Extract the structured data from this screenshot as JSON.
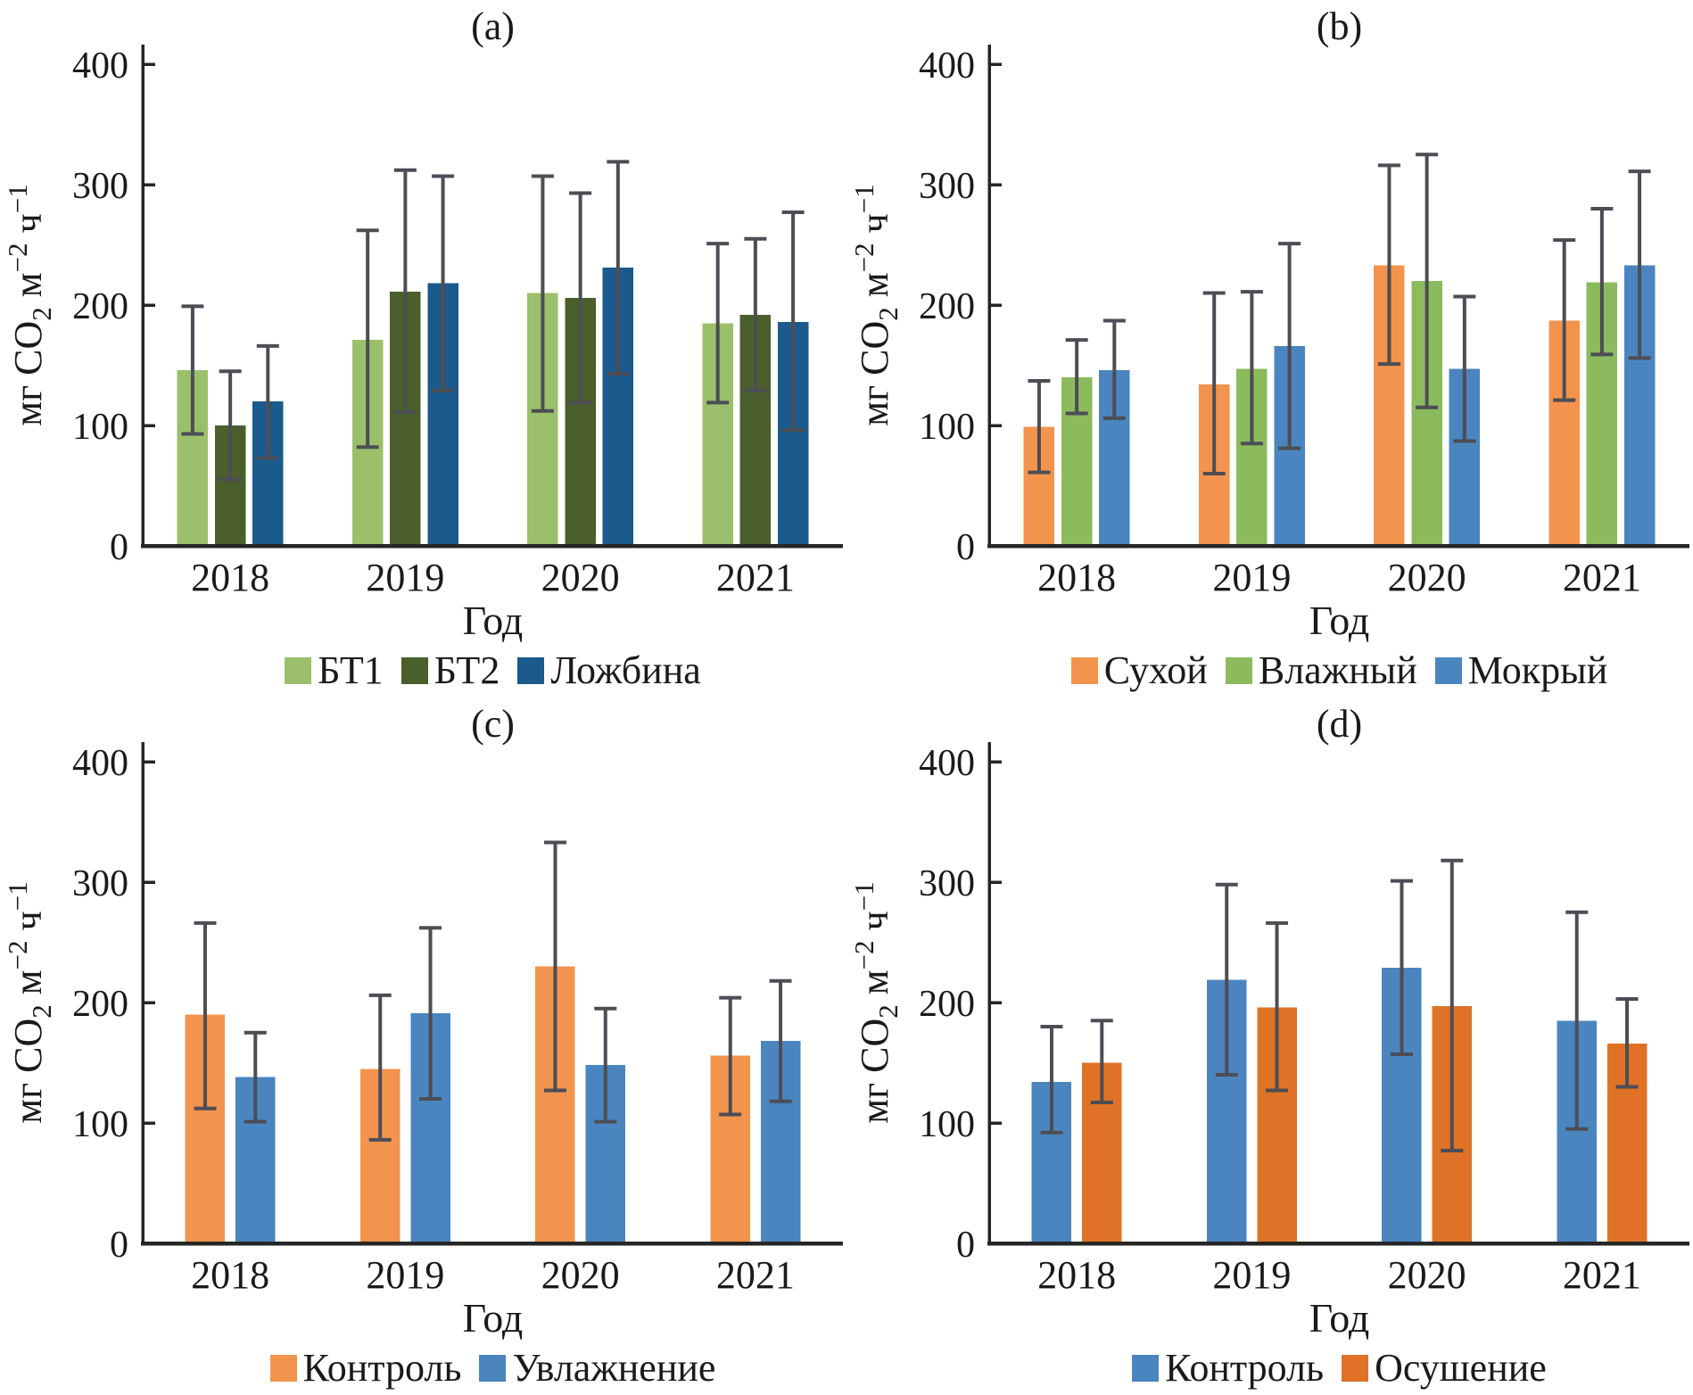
{
  "figure": {
    "background": "#ffffff",
    "axis_color": "#262626",
    "error_bar_color": "#4D4D55",
    "text_color": "#1a1a1a",
    "ylabel_plain": "мг CO2 м−2 ч−1",
    "ylabel_parts": [
      {
        "t": "мг CO",
        "s": ""
      },
      {
        "t": "2",
        "s": "sub"
      },
      {
        "t": " м",
        "s": ""
      },
      {
        "t": "−2",
        "s": "sup"
      },
      {
        "t": " ч",
        "s": ""
      },
      {
        "t": "−1",
        "s": "sup"
      }
    ]
  },
  "chart_data": [
    {
      "id": "a",
      "title": "(a)",
      "type": "bar",
      "xlabel": "Год",
      "categories": [
        "2018",
        "2019",
        "2020",
        "2021"
      ],
      "ylim": [
        0,
        400
      ],
      "yticks": [
        0,
        100,
        200,
        300,
        400
      ],
      "grid": false,
      "legend_position": "bottom",
      "error_bars": true,
      "series": [
        {
          "name": "БТ1",
          "color": "#9CBF6B",
          "values": [
            146,
            171,
            210,
            185
          ],
          "err_low": [
            93,
            82,
            112,
            119
          ],
          "err_high": [
            199,
            262,
            307,
            251
          ]
        },
        {
          "name": "БТ2",
          "color": "#4A5F2B",
          "values": [
            100,
            211,
            206,
            192
          ],
          "err_low": [
            55,
            111,
            119,
            129
          ],
          "err_high": [
            145,
            312,
            293,
            255
          ]
        },
        {
          "name": "Ложбина",
          "color": "#1A5A8C",
          "values": [
            120,
            218,
            231,
            186
          ],
          "err_low": [
            73,
            129,
            143,
            96
          ],
          "err_high": [
            166,
            307,
            319,
            277
          ]
        }
      ]
    },
    {
      "id": "b",
      "title": "(b)",
      "type": "bar",
      "xlabel": "Год",
      "categories": [
        "2018",
        "2019",
        "2020",
        "2021"
      ],
      "ylim": [
        0,
        400
      ],
      "yticks": [
        0,
        100,
        200,
        300,
        400
      ],
      "grid": false,
      "legend_position": "bottom",
      "error_bars": true,
      "series": [
        {
          "name": "Сухой",
          "color": "#F2944D",
          "values": [
            99,
            134,
            233,
            187
          ],
          "err_low": [
            61,
            60,
            151,
            121
          ],
          "err_high": [
            137,
            210,
            316,
            254
          ]
        },
        {
          "name": "Влажный",
          "color": "#8CBB5E",
          "values": [
            140,
            147,
            220,
            219
          ],
          "err_low": [
            110,
            85,
            115,
            159
          ],
          "err_high": [
            171,
            211,
            325,
            280
          ]
        },
        {
          "name": "Мокрый",
          "color": "#4A85BF",
          "values": [
            146,
            166,
            147,
            233
          ],
          "err_low": [
            106,
            81,
            87,
            156
          ],
          "err_high": [
            187,
            251,
            207,
            311
          ]
        }
      ]
    },
    {
      "id": "c",
      "title": "(c)",
      "type": "bar",
      "xlabel": "Год",
      "categories": [
        "2018",
        "2019",
        "2020",
        "2021"
      ],
      "ylim": [
        0,
        400
      ],
      "yticks": [
        0,
        100,
        200,
        300,
        400
      ],
      "grid": false,
      "legend_position": "bottom",
      "error_bars": true,
      "series": [
        {
          "name": "Контроль",
          "color": "#F2944D",
          "values": [
            190,
            145,
            230,
            156
          ],
          "err_low": [
            112,
            86,
            127,
            107
          ],
          "err_high": [
            266,
            206,
            333,
            204
          ]
        },
        {
          "name": "Увлажнение",
          "color": "#4A85BF",
          "values": [
            138,
            191,
            148,
            168
          ],
          "err_low": [
            101,
            120,
            101,
            118
          ],
          "err_high": [
            175,
            262,
            195,
            218
          ]
        }
      ]
    },
    {
      "id": "d",
      "title": "(d)",
      "type": "bar",
      "xlabel": "Год",
      "categories": [
        "2018",
        "2019",
        "2020",
        "2021"
      ],
      "ylim": [
        0,
        400
      ],
      "yticks": [
        0,
        100,
        200,
        300,
        400
      ],
      "grid": false,
      "legend_position": "bottom",
      "error_bars": true,
      "series": [
        {
          "name": "Контроль",
          "color": "#4A85BF",
          "values": [
            134,
            219,
            229,
            185
          ],
          "err_low": [
            92,
            140,
            157,
            95
          ],
          "err_high": [
            180,
            298,
            301,
            275
          ]
        },
        {
          "name": "Осушение",
          "color": "#DF7226",
          "values": [
            150,
            196,
            197,
            166
          ],
          "err_low": [
            117,
            127,
            77,
            130
          ],
          "err_high": [
            185,
            266,
            318,
            203
          ]
        }
      ]
    }
  ]
}
